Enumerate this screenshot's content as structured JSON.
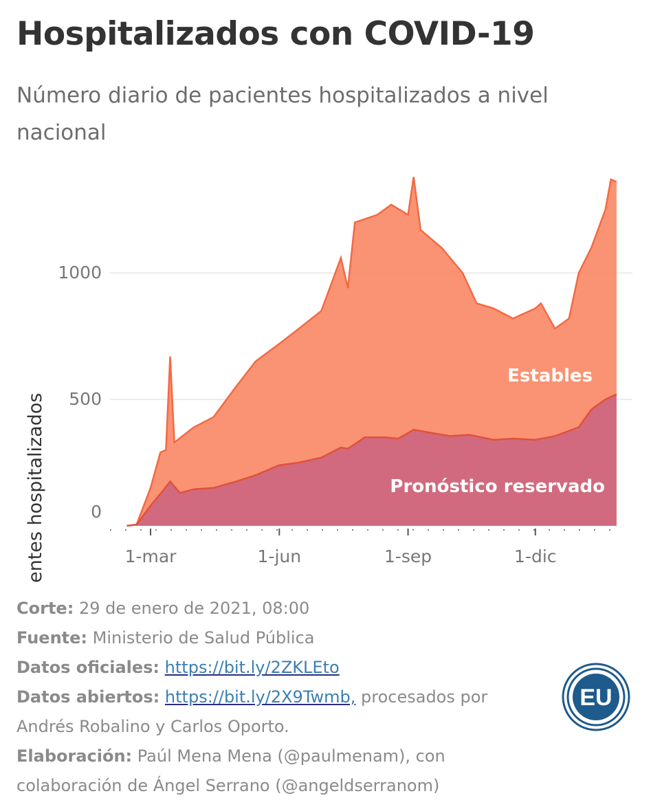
{
  "title": "Hospitalizados con COVID-19",
  "subtitle": "Número diario de pacientes hospitalizados a nivel nacional",
  "footer": {
    "corte_label": "Corte:",
    "corte_value": "29 de enero de 2021, 08:00",
    "fuente_label": "Fuente:",
    "fuente_value": "Ministerio de Salud Pública",
    "oficiales_label": "Datos oficiales:",
    "oficiales_link": "https://bit.ly/2ZKLEto",
    "abiertos_label": "Datos abiertos:",
    "abiertos_link": "https://bit.ly/2X9Twmb,",
    "abiertos_rest": " procesados por",
    "abiertos_rest2": "Andrés Robalino y Carlos Oporto.",
    "elaboracion_label": "Elaboración:",
    "elaboracion_value": "Paúl Mena Mena (@paulmenam), con",
    "elaboracion_value2": "colaboración de Ángel Serrano (@angeldserranom)"
  },
  "logo": {
    "text": "EU",
    "color": "#1f5a8c"
  },
  "colors": {
    "estables": "#fa8d6c",
    "estables_line": "#f26a44",
    "reservado": "#cc6680",
    "reservado_line": "#e0513a",
    "grid": "#ececec"
  },
  "chart_data": {
    "type": "area",
    "stacked": true,
    "ylabel": "Pacientes hospitalizados",
    "xlabel": "",
    "yticks": [
      0,
      500,
      1000
    ],
    "ylim": [
      0,
      1400
    ],
    "xticks": [
      {
        "date": "2020-03-01",
        "label": "1-mar"
      },
      {
        "date": "2020-06-01",
        "label": "1-jun"
      },
      {
        "date": "2020-09-01",
        "label": "1-sep"
      },
      {
        "date": "2020-12-01",
        "label": "1-dic"
      }
    ],
    "xlim": [
      "2020-02-01",
      "2021-02-01"
    ],
    "grid": true,
    "series": [
      {
        "name": "Pronóstico reservado",
        "points": [
          [
            "2020-02-13",
            0
          ],
          [
            "2020-02-20",
            5
          ],
          [
            "2020-03-01",
            80
          ],
          [
            "2020-03-10",
            140
          ],
          [
            "2020-03-15",
            175
          ],
          [
            "2020-03-22",
            130
          ],
          [
            "2020-04-01",
            145
          ],
          [
            "2020-04-15",
            150
          ],
          [
            "2020-05-01",
            175
          ],
          [
            "2020-05-15",
            200
          ],
          [
            "2020-06-01",
            240
          ],
          [
            "2020-06-15",
            250
          ],
          [
            "2020-07-01",
            270
          ],
          [
            "2020-07-15",
            310
          ],
          [
            "2020-07-20",
            305
          ],
          [
            "2020-08-01",
            350
          ],
          [
            "2020-08-15",
            350
          ],
          [
            "2020-08-25",
            345
          ],
          [
            "2020-09-05",
            380
          ],
          [
            "2020-09-15",
            370
          ],
          [
            "2020-10-01",
            355
          ],
          [
            "2020-10-15",
            360
          ],
          [
            "2020-11-01",
            340
          ],
          [
            "2020-11-15",
            345
          ],
          [
            "2020-12-01",
            340
          ],
          [
            "2020-12-15",
            355
          ],
          [
            "2021-01-01",
            390
          ],
          [
            "2021-01-10",
            460
          ],
          [
            "2021-01-20",
            500
          ],
          [
            "2021-01-28",
            520
          ]
        ]
      },
      {
        "name": "Estables",
        "points": [
          [
            "2020-02-13",
            0
          ],
          [
            "2020-02-20",
            5
          ],
          [
            "2020-03-01",
            150
          ],
          [
            "2020-03-08",
            290
          ],
          [
            "2020-03-12",
            300
          ],
          [
            "2020-03-15",
            670
          ],
          [
            "2020-03-18",
            330
          ],
          [
            "2020-04-01",
            390
          ],
          [
            "2020-04-15",
            430
          ],
          [
            "2020-05-01",
            550
          ],
          [
            "2020-05-15",
            650
          ],
          [
            "2020-06-01",
            720
          ],
          [
            "2020-06-15",
            780
          ],
          [
            "2020-07-01",
            850
          ],
          [
            "2020-07-15",
            1060
          ],
          [
            "2020-07-20",
            940
          ],
          [
            "2020-07-25",
            1200
          ],
          [
            "2020-08-10",
            1230
          ],
          [
            "2020-08-20",
            1270
          ],
          [
            "2020-09-01",
            1230
          ],
          [
            "2020-09-05",
            1380
          ],
          [
            "2020-09-10",
            1170
          ],
          [
            "2020-09-25",
            1100
          ],
          [
            "2020-10-10",
            1000
          ],
          [
            "2020-10-20",
            880
          ],
          [
            "2020-11-01",
            860
          ],
          [
            "2020-11-15",
            820
          ],
          [
            "2020-12-01",
            860
          ],
          [
            "2020-12-05",
            880
          ],
          [
            "2020-12-15",
            780
          ],
          [
            "2020-12-25",
            820
          ],
          [
            "2021-01-01",
            1000
          ],
          [
            "2021-01-10",
            1100
          ],
          [
            "2021-01-20",
            1250
          ],
          [
            "2021-01-24",
            1370
          ],
          [
            "2021-01-28",
            1360
          ]
        ]
      }
    ],
    "series_labels": [
      "Estables",
      "Pronóstico reservado"
    ]
  }
}
